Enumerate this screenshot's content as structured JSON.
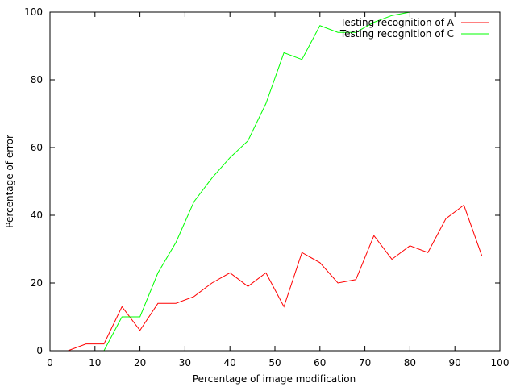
{
  "chart_data": {
    "type": "line",
    "title": "",
    "xlabel": "Percentage of image modification",
    "ylabel": "Percentage of error",
    "xlim": [
      0,
      100
    ],
    "ylim": [
      0,
      100
    ],
    "xticks": [
      0,
      10,
      20,
      30,
      40,
      50,
      60,
      70,
      80,
      90,
      100
    ],
    "yticks": [
      0,
      20,
      40,
      60,
      80,
      100
    ],
    "grid": false,
    "legend_position": "top-right",
    "series": [
      {
        "name": "Testing recognition of A",
        "color": "#ff0000",
        "x": [
          0,
          4,
          8,
          12,
          16,
          20,
          24,
          28,
          32,
          36,
          40,
          44,
          48,
          52,
          56,
          60,
          64,
          68,
          72,
          76,
          80,
          84,
          88,
          92,
          96
        ],
        "y": [
          0,
          0,
          2,
          2,
          13,
          6,
          14,
          14,
          16,
          20,
          23,
          19,
          23,
          13,
          29,
          26,
          20,
          21,
          34,
          27,
          31,
          29,
          39,
          43,
          28
        ]
      },
      {
        "name": "Testing recognition of C",
        "color": "#00ff00",
        "x": [
          0,
          4,
          8,
          12,
          16,
          20,
          24,
          28,
          32,
          36,
          40,
          44,
          48,
          52,
          56,
          60,
          64,
          68,
          72,
          76,
          80,
          84,
          88,
          92,
          96
        ],
        "y": [
          0,
          0,
          0,
          0,
          10,
          10,
          23,
          32,
          44,
          51,
          57,
          62,
          73,
          88,
          86,
          96,
          94,
          94,
          97,
          99,
          100,
          100,
          100,
          100,
          100
        ]
      }
    ]
  }
}
